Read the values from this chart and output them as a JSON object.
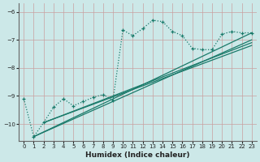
{
  "xlabel": "Humidex (Indice chaleur)",
  "bg_color": "#cce8e8",
  "grid_color": "#c8a0a0",
  "line_color": "#1a7a6a",
  "xlim": [
    -0.5,
    23.5
  ],
  "ylim": [
    -10.6,
    -5.7
  ],
  "yticks": [
    -10,
    -9,
    -8,
    -7,
    -6
  ],
  "xticks": [
    0,
    1,
    2,
    3,
    4,
    5,
    6,
    7,
    8,
    9,
    10,
    11,
    12,
    13,
    14,
    15,
    16,
    17,
    18,
    19,
    20,
    21,
    22,
    23
  ],
  "zigzag_x": [
    0,
    1,
    2,
    3,
    4,
    5,
    6,
    7,
    8,
    9,
    10,
    11,
    12,
    13,
    14,
    15,
    16,
    17,
    18,
    19,
    20,
    21,
    22,
    23
  ],
  "zigzag_y": [
    -9.1,
    -10.45,
    -9.95,
    -9.4,
    -9.1,
    -9.35,
    -9.2,
    -9.05,
    -8.95,
    -9.15,
    -6.65,
    -6.85,
    -6.6,
    -6.3,
    -6.35,
    -6.7,
    -6.85,
    -7.3,
    -7.35,
    -7.35,
    -6.8,
    -6.7,
    -6.75,
    -6.75
  ],
  "trend_lines": [
    {
      "x0": 1,
      "y0": -10.45,
      "x1": 23,
      "y1": -6.75
    },
    {
      "x0": 1,
      "y0": -10.45,
      "x1": 23,
      "y1": -7.0
    },
    {
      "x0": 2,
      "y0": -9.95,
      "x1": 23,
      "y1": -7.1
    },
    {
      "x0": 2,
      "y0": -9.95,
      "x1": 23,
      "y1": -7.2
    }
  ]
}
